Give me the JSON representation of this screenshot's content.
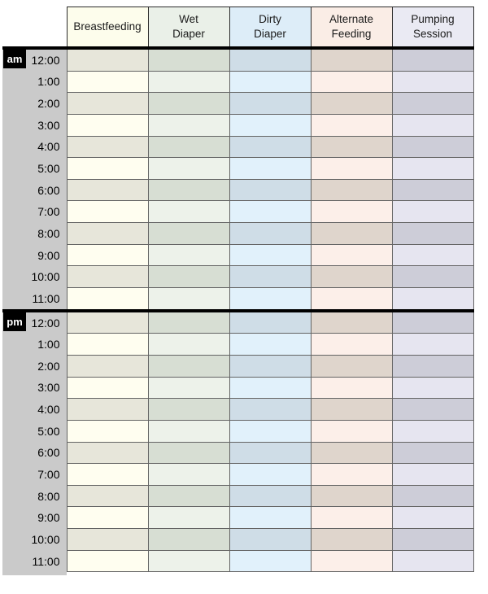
{
  "table": {
    "columns": [
      {
        "label": "Breastfeeding",
        "header_bg": "#fdfdec",
        "row_light": "#fffef0",
        "row_dark": "#e7e6da"
      },
      {
        "label": "Wet\nDiaper",
        "header_bg": "#eaf0e8",
        "row_light": "#edf2ea",
        "row_dark": "#d7ded3"
      },
      {
        "label": "Dirty\nDiaper",
        "header_bg": "#ddedf8",
        "row_light": "#e1f1fb",
        "row_dark": "#cfdde7"
      },
      {
        "label": "Alternate\nFeeding",
        "header_bg": "#faede6",
        "row_light": "#fcefe9",
        "row_dark": "#dfd5cc"
      },
      {
        "label": "Pumping\nSession",
        "header_bg": "#eaeaf3",
        "row_light": "#e6e5f0",
        "row_dark": "#cdcdd8"
      }
    ],
    "sections": [
      {
        "period": "am",
        "times": [
          "12:00",
          "1:00",
          "2:00",
          "3:00",
          "4:00",
          "5:00",
          "6:00",
          "7:00",
          "8:00",
          "9:00",
          "10:00",
          "11:00"
        ]
      },
      {
        "period": "pm",
        "times": [
          "12:00",
          "1:00",
          "2:00",
          "3:00",
          "4:00",
          "5:00",
          "6:00",
          "7:00",
          "8:00",
          "9:00",
          "10:00",
          "11:00"
        ]
      }
    ]
  },
  "colors": {
    "page_bg": "#ffffff",
    "gutter_bg": "#cacaca",
    "grid_line": "#646464",
    "header_border": "#2b2b2b",
    "section_line": "#000000",
    "badge_bg": "#000000",
    "badge_text": "#ffffff",
    "header_text": "#1b1b1b",
    "time_text": "#000000"
  }
}
